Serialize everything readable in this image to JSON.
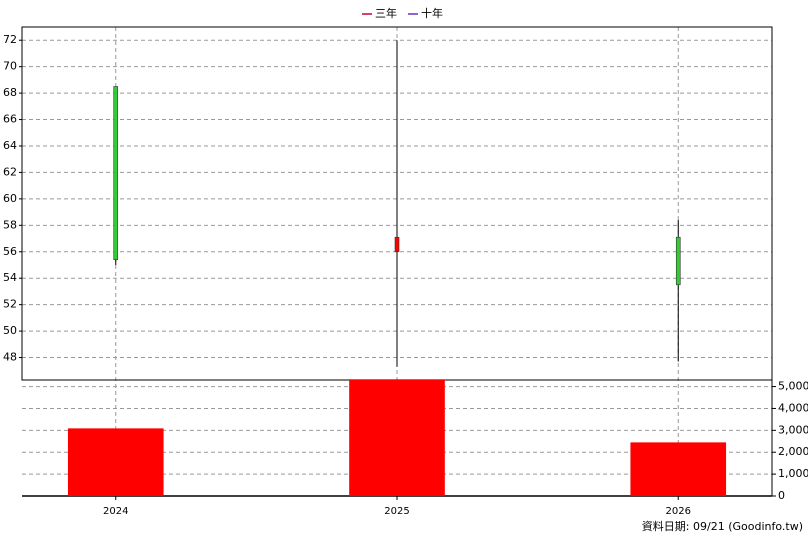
{
  "chart_data": {
    "type": "candlestick",
    "legend": [
      {
        "name": "三年",
        "color": "#cc0033"
      },
      {
        "name": "十年",
        "color": "#6633cc"
      }
    ],
    "categories": [
      "2024",
      "2025",
      "2026"
    ],
    "open": [
      68.5,
      56.0,
      57.1
    ],
    "high": [
      68.5,
      72.0,
      58.4
    ],
    "low": [
      55.0,
      47.3,
      47.7
    ],
    "close": [
      55.4,
      57.1,
      53.5
    ],
    "volume": [
      3090,
      5300,
      2450
    ],
    "up_color": "#ff0000",
    "down_color": "#33cc33",
    "volume_color": "#ff0000",
    "ylim": [
      46.3,
      73
    ],
    "yticks": [
      48,
      50,
      52,
      54,
      56,
      58,
      60,
      62,
      64,
      66,
      68,
      70,
      72
    ],
    "y2lim": [
      0,
      5300
    ],
    "y2ticks": [
      0,
      {
        "value": 1000,
        "label": "1,000"
      },
      {
        "value": 2000,
        "label": "2,000"
      },
      {
        "value": 3000,
        "label": "3,000"
      },
      {
        "value": 4000,
        "label": "4,000"
      },
      {
        "value": 5000,
        "label": "5,000"
      }
    ],
    "grid": true,
    "footer": "資料日期: 09/21  (Goodinfo.tw)"
  }
}
